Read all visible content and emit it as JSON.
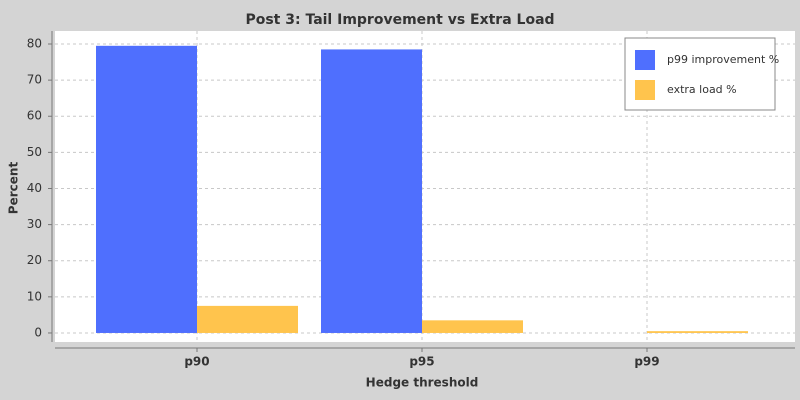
{
  "chart_data": {
    "type": "bar",
    "title": "Post 3: Tail Improvement vs Extra Load",
    "x_label": "Hedge threshold",
    "y_label": "Percent",
    "categories": [
      "p90",
      "p95",
      "p99"
    ],
    "series": [
      {
        "name": "p99 improvement %",
        "color": "#4f6ffe",
        "values": [
          79.5,
          78.5,
          0
        ]
      },
      {
        "name": "extra load %",
        "color": "#ffc44d",
        "values": [
          7.5,
          3.5,
          0.5
        ]
      }
    ],
    "ylim": [
      -2.5,
      83.6
    ],
    "yticks": [
      0,
      10,
      20,
      30,
      40,
      50,
      60,
      70,
      80
    ],
    "grid": true,
    "legend": "top-right"
  }
}
